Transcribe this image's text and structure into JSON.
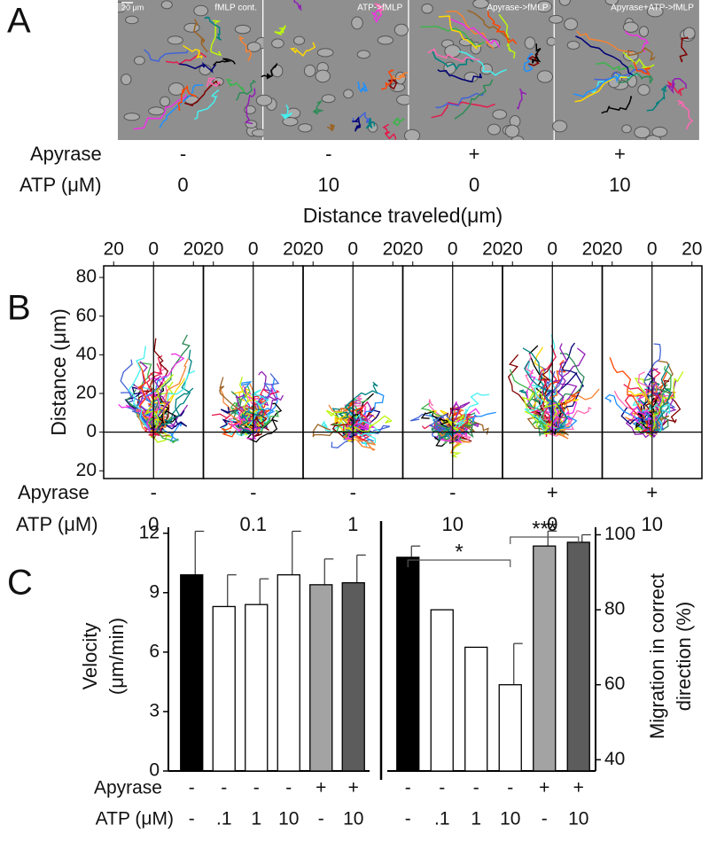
{
  "panel_labels": [
    "A",
    "B",
    "C"
  ],
  "panel_a": {
    "scale_bar": "20 μm",
    "images": [
      "fMLP cont.",
      "ATP->fMLP",
      "Apyrase->fMLP",
      "Apyrase+ATP->fMLP"
    ],
    "condition_labels": [
      "Apyrase",
      "ATP (μM)"
    ],
    "conditions": [
      [
        "-",
        "-",
        "+",
        "+"
      ],
      [
        "0",
        "10",
        "0",
        "10"
      ]
    ]
  },
  "chart_data": [
    {
      "type": "tracks",
      "title": "Distance traveled(μm)",
      "y_label": "Distance (μm)",
      "xlim": [
        -25,
        25
      ],
      "xticks": [
        {
          "value": -20,
          "label": "20"
        },
        0,
        {
          "value": 20,
          "label": "20"
        }
      ],
      "ylim": [
        -24,
        86
      ],
      "yticks": [
        80,
        60,
        40,
        20,
        0,
        {
          "value": -20,
          "label": "20"
        }
      ],
      "condition_labels": [
        "Apyrase",
        "ATP (μM)"
      ],
      "conditions": [
        [
          "-",
          "-",
          "-",
          "-",
          "+",
          "+"
        ],
        [
          "0",
          "0.1",
          "1",
          "10",
          "0",
          "10"
        ]
      ]
    },
    {
      "type": "bar",
      "y_label": [
        "Velocity",
        "(μm/min)"
      ],
      "axis_side": "left",
      "ylim": [
        0,
        12.3
      ],
      "yticks": [
        0,
        3,
        6,
        9,
        12
      ],
      "values": [
        9.9,
        8.3,
        8.4,
        9.9,
        9.4,
        9.5
      ],
      "errors": [
        2.2,
        1.6,
        1.3,
        2.2,
        1.3,
        1.4
      ],
      "colors": [
        "#000000",
        "#ffffff",
        "#ffffff",
        "#ffffff",
        "#a3a3a3",
        "#5c5c5c"
      ],
      "condition_labels": [
        "Apyrase",
        "ATP (μM)"
      ],
      "conditions": [
        [
          "-",
          "-",
          "-",
          "-",
          "+",
          "+"
        ],
        [
          "-",
          ".1",
          "1",
          "10",
          "-",
          "10"
        ]
      ]
    },
    {
      "type": "bar",
      "y_label": [
        "Migration in correct",
        "direction (%)"
      ],
      "axis_side": "right",
      "ylim": [
        37,
        102
      ],
      "yticks": [
        40,
        60,
        80,
        100
      ],
      "values": [
        94,
        80,
        70,
        60,
        97,
        98
      ],
      "errors": [
        3,
        null,
        null,
        11,
        4,
        2
      ],
      "colors": [
        "#000000",
        "#ffffff",
        "#ffffff",
        "#ffffff",
        "#a3a3a3",
        "#5c5c5c"
      ],
      "conditions": [
        [
          "-",
          "-",
          "-",
          "-",
          "+",
          "+"
        ],
        [
          "-",
          ".1",
          "1",
          "10",
          "-",
          "10"
        ]
      ],
      "annotations": [
        {
          "text": "*",
          "from": 0,
          "to": 3
        },
        {
          "text": "***",
          "from": 3,
          "to": 5
        }
      ]
    }
  ]
}
